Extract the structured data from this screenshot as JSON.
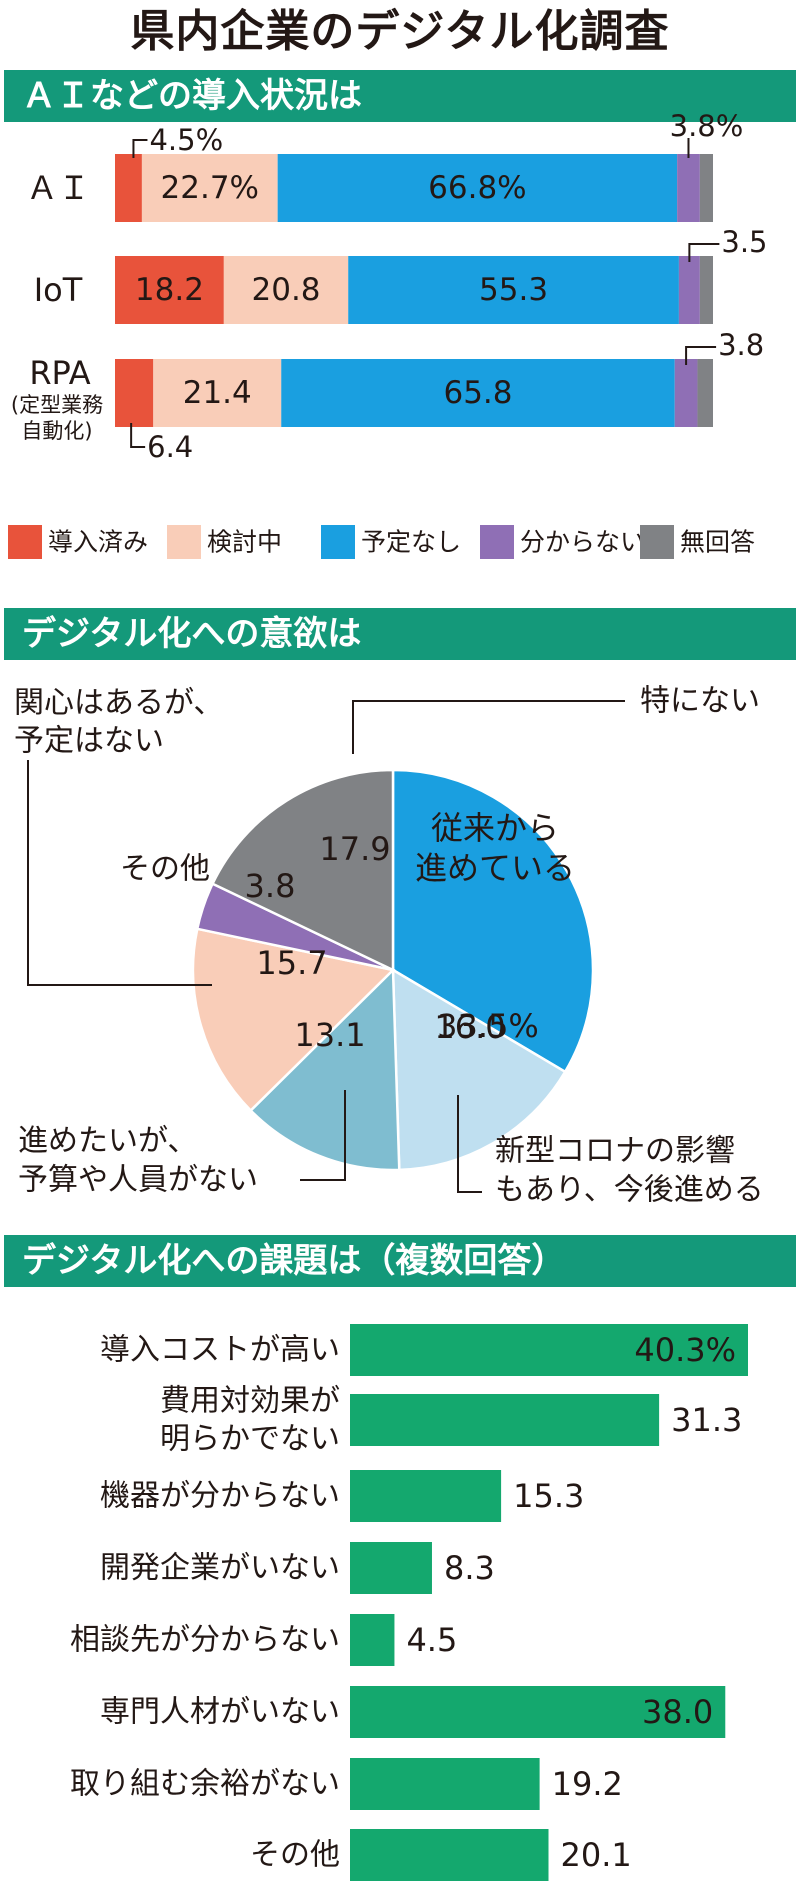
{
  "title": "県内企業のデジタル化調査",
  "chart_data": [
    {
      "type": "bar",
      "orientation": "horizontal",
      "stacked": true,
      "title": "ＡＩなどの導入状況は",
      "categories": [
        "ＡＩ",
        "IoT",
        "RPA"
      ],
      "category_notes": [
        "",
        "",
        "（定型業務自動化）"
      ],
      "category_note_lines": [
        [],
        [],
        [
          "(定型業務",
          "自動化)"
        ]
      ],
      "series": [
        {
          "name": "導入済み",
          "color": "#e8533b",
          "values": [
            4.5,
            18.2,
            6.4
          ]
        },
        {
          "name": "検討中",
          "color": "#f9cdb8",
          "values": [
            22.7,
            20.8,
            21.4
          ]
        },
        {
          "name": "予定なし",
          "color": "#1a9fe0",
          "values": [
            66.8,
            55.3,
            65.8
          ]
        },
        {
          "name": "分からない",
          "color": "#8f6fb5",
          "values": [
            3.8,
            3.5,
            3.8
          ]
        },
        {
          "name": "無回答",
          "color": "#808285",
          "values": [
            2.2,
            2.2,
            2.6
          ]
        }
      ],
      "value_labels": [
        [
          "4.5%",
          "22.7%",
          "66.8%",
          "3.8%",
          ""
        ],
        [
          "18.2",
          "20.8",
          "55.3",
          "3.5",
          ""
        ],
        [
          "6.4",
          "21.4",
          "65.8",
          "3.8",
          ""
        ]
      ],
      "legend_position": "bottom"
    },
    {
      "type": "pie",
      "title": "デジタル化への意欲は",
      "slices": [
        {
          "name": "従来から進めている",
          "name_lines": [
            "従来から",
            "進めている"
          ],
          "value": 33.5,
          "label": "33.5%",
          "color": "#1a9fe0"
        },
        {
          "name": "新型コロナの影響もあり、今後進める",
          "name_lines": [
            "新型コロナの影響",
            "もあり、今後進める"
          ],
          "value": 16.0,
          "label": "16.0",
          "color": "#bfdff0"
        },
        {
          "name": "進めたいが、予算や人員がない",
          "name_lines": [
            "進めたいが、",
            "予算や人員がない"
          ],
          "value": 13.1,
          "label": "13.1",
          "color": "#7fbdd0"
        },
        {
          "name": "関心はあるが、予定はない",
          "name_lines": [
            "関心はあるが、",
            "予定はない"
          ],
          "value": 15.7,
          "label": "15.7",
          "color": "#f9cdb8"
        },
        {
          "name": "その他",
          "name_lines": [
            "その他"
          ],
          "value": 3.8,
          "label": "3.8",
          "color": "#8f6fb5"
        },
        {
          "name": "特にない",
          "name_lines": [
            "特にない"
          ],
          "value": 17.9,
          "label": "17.9",
          "color": "#808285"
        }
      ]
    },
    {
      "type": "bar",
      "orientation": "horizontal",
      "title": "デジタル化への課題は（複数回答）",
      "categories": [
        "導入コストが高い",
        "費用対効果が明らかでない",
        "機器が分からない",
        "開発企業がいない",
        "相談先が分からない",
        "専門人材がいない",
        "取り組む余裕がない",
        "その他"
      ],
      "category_lines": [
        [
          "導入コストが高い"
        ],
        [
          "費用対効果が",
          "明らかでない"
        ],
        [
          "機器が分からない"
        ],
        [
          "開発企業がいない"
        ],
        [
          "相談先が分からない"
        ],
        [
          "専門人材がいない"
        ],
        [
          "取り組む余裕がない"
        ],
        [
          "その他"
        ]
      ],
      "values": [
        40.3,
        31.3,
        15.3,
        8.3,
        4.5,
        38.0,
        19.2,
        20.1
      ],
      "value_labels": [
        "40.3%",
        "31.3",
        "15.3",
        "8.3",
        "4.5",
        "38.0",
        "19.2",
        "20.1"
      ],
      "color": "#14a86e"
    }
  ]
}
